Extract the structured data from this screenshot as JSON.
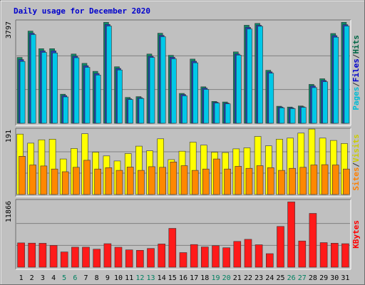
{
  "chart_data": {
    "type": "bar",
    "title": "Daily usage for December 2020",
    "categories": [
      "1",
      "2",
      "3",
      "4",
      "5",
      "6",
      "7",
      "8",
      "9",
      "10",
      "11",
      "12",
      "13",
      "14",
      "15",
      "16",
      "17",
      "18",
      "19",
      "20",
      "21",
      "22",
      "23",
      "24",
      "25",
      "26",
      "27",
      "28",
      "29",
      "30",
      "31"
    ],
    "weekend_days": [
      "5",
      "6",
      "12",
      "13",
      "19",
      "20",
      "26",
      "27"
    ],
    "panels": [
      {
        "name": "top",
        "ymax_label": "3797",
        "ymax": 3797,
        "grid": true,
        "labels": [
          {
            "text": "Pages",
            "color": "#00bcd4"
          },
          {
            "text": "/",
            "color": "#333333"
          },
          {
            "text": "Files",
            "color": "#0000cc"
          },
          {
            "text": "/",
            "color": "#333333"
          },
          {
            "text": "Hits",
            "color": "#006644"
          }
        ],
        "series": [
          {
            "name": "Hits",
            "color": "#0e8a6a",
            "values": [
              2470,
              3460,
              2800,
              2800,
              1090,
              2600,
              2250,
              1950,
              3790,
              2120,
              970,
              1000,
              2600,
              3380,
              2550,
              1120,
              2410,
              1370,
              820,
              800,
              2680,
              3680,
              3750,
              1990,
              640,
              610,
              650,
              1460,
              1670,
              3370,
              3790
            ]
          },
          {
            "name": "Files",
            "color": "#1f3fbf",
            "values": [
              2390,
              3380,
              2720,
              2720,
              1040,
              2520,
              2160,
              1870,
              3710,
              2060,
              920,
              960,
              2520,
              3300,
              2480,
              1080,
              2330,
              1320,
              790,
              760,
              2600,
              3600,
              3680,
              1930,
              610,
              580,
              620,
              1400,
              1610,
              3290,
              3700
            ]
          },
          {
            "name": "Pages",
            "color": "#00c8e8",
            "values": [
              2320,
              3330,
              2660,
              2640,
              990,
              2460,
              2100,
              1810,
              3650,
              2000,
              890,
              930,
              2470,
              3250,
              2420,
              1030,
              2270,
              1270,
              760,
              730,
              2560,
              3540,
              3640,
              1880,
              580,
              550,
              600,
              1340,
              1560,
              3230,
              3650
            ]
          }
        ]
      },
      {
        "name": "middle",
        "ymax_label": "191",
        "ymax": 191,
        "grid": true,
        "labels": [
          {
            "text": "Sites",
            "color": "#ff8000"
          },
          {
            "text": "/",
            "color": "#333333"
          },
          {
            "text": "Visits",
            "color": "#cccc00"
          }
        ],
        "series": [
          {
            "name": "Visits",
            "color": "#ffff00",
            "values": [
              180,
              153,
              163,
              165,
              106,
              137,
              181,
              126,
              115,
              100,
              122,
              144,
              130,
              166,
              104,
              129,
              156,
              147,
              126,
              125,
              136,
              139,
              173,
              145,
              165,
              168,
              183,
              195,
              168,
              161,
              152
            ]
          },
          {
            "name": "Sites",
            "color": "#ff8800",
            "values": [
              114,
              88,
              85,
              76,
              68,
              81,
              102,
              76,
              80,
              72,
              82,
              72,
              83,
              81,
              97,
              86,
              72,
              76,
              106,
              76,
              84,
              78,
              86,
              80,
              72,
              78,
              81,
              88,
              89,
              88,
              76
            ]
          }
        ]
      },
      {
        "name": "bottom",
        "ymax_label": "11866",
        "ymax": 11866,
        "grid": true,
        "labels": [
          {
            "text": "KBytes",
            "color": "#ff0000"
          }
        ],
        "series": [
          {
            "name": "KBytes",
            "color": "#ff1a1a",
            "values": [
              4400,
              4360,
              4330,
              3950,
              2760,
              3630,
              3630,
              3260,
              4260,
              3610,
              3130,
              3060,
              3390,
              4200,
              7030,
              2650,
              4100,
              3660,
              3900,
              3520,
              4670,
              5040,
              4060,
              2450,
              7380,
              11820,
              4750,
              9740,
              4450,
              4350,
              4250
            ]
          }
        ]
      }
    ]
  }
}
